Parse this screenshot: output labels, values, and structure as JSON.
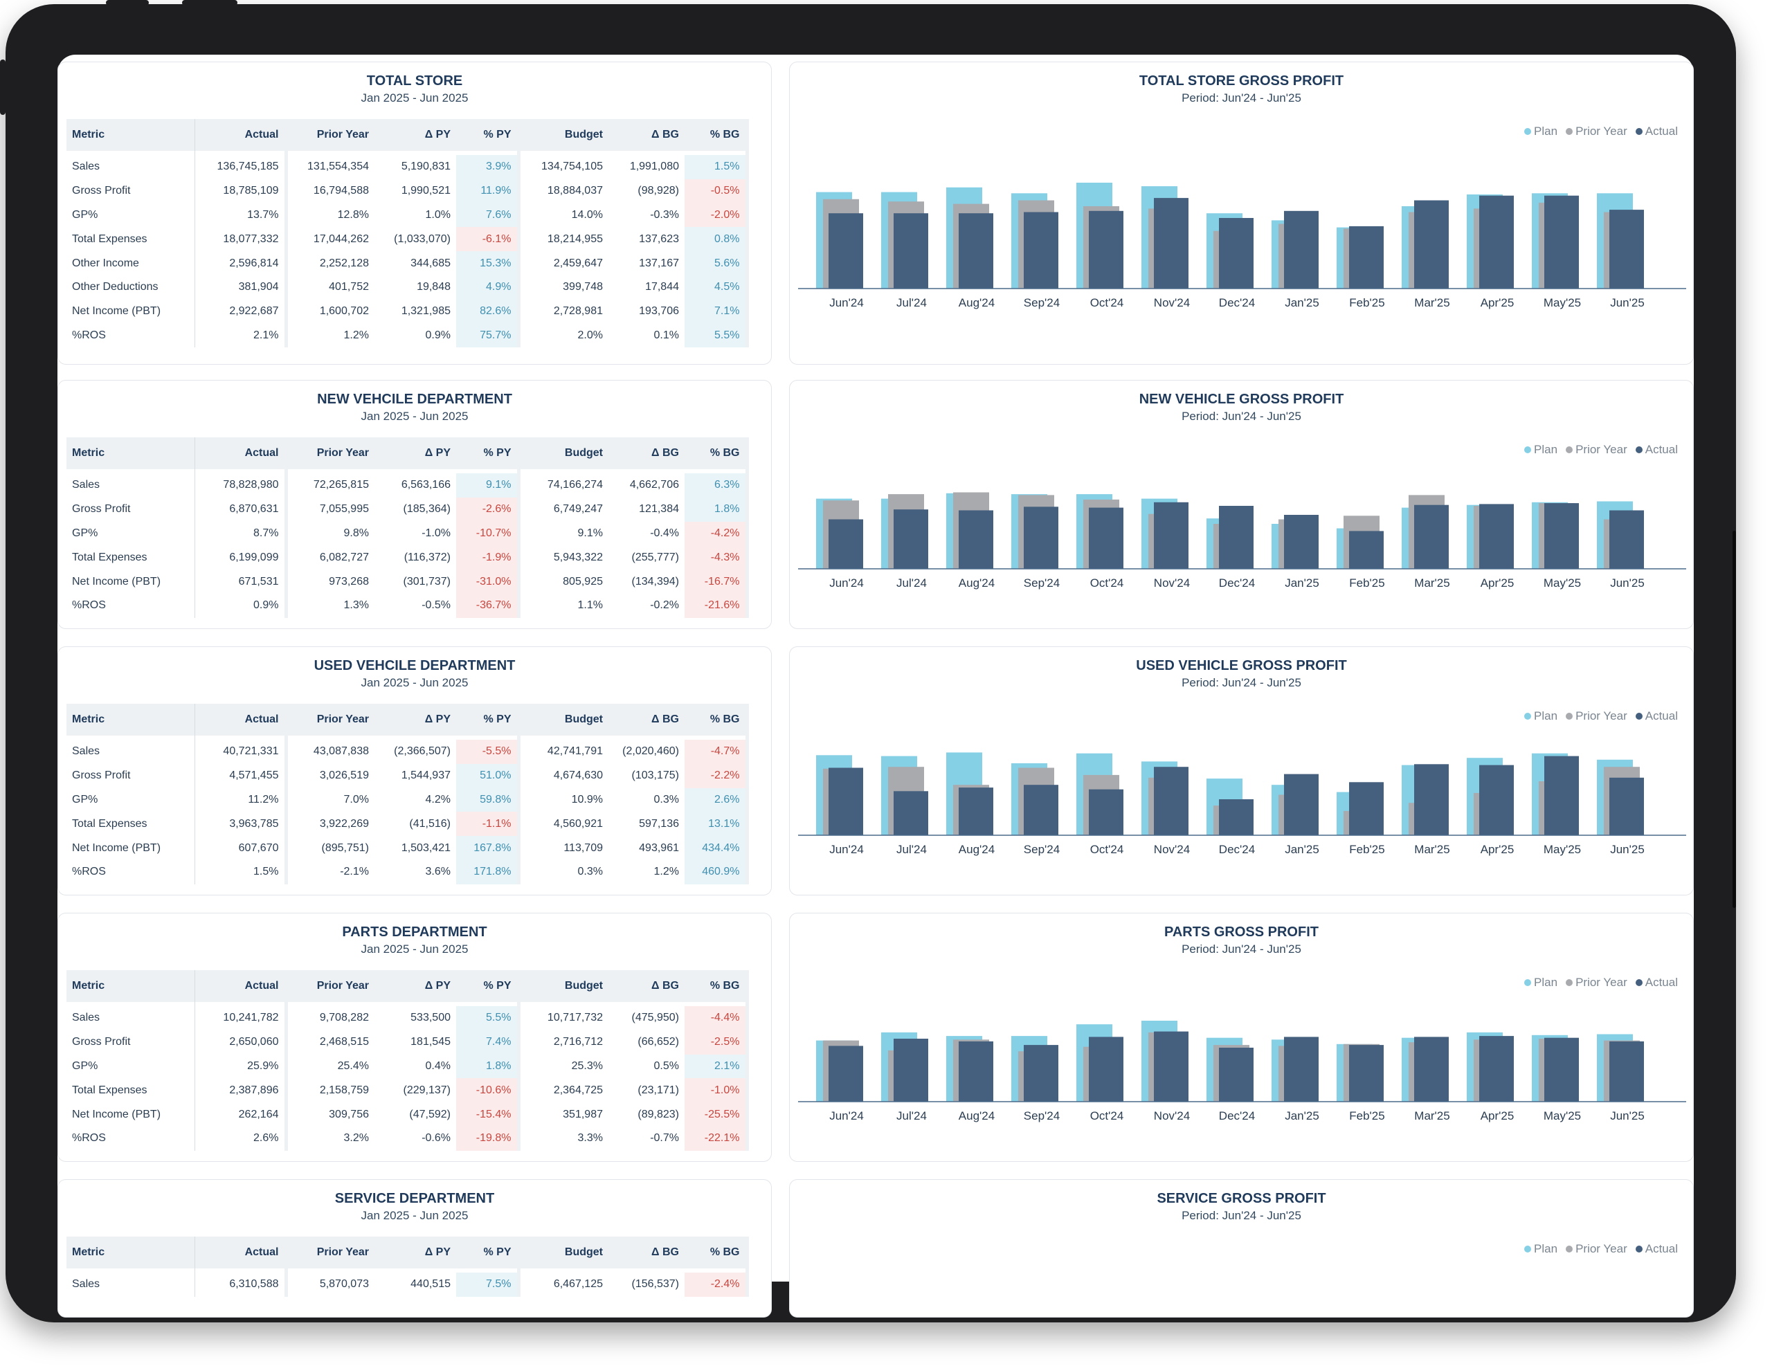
{
  "legend": {
    "plan": "Plan",
    "prior_year": "Prior Year",
    "actual": "Actual"
  },
  "colors": {
    "plan": "#86d0e6",
    "prior_year": "#a8aaae",
    "actual": "#455f7e",
    "positive": "#3f8fb0",
    "negative": "#c8463f"
  },
  "months": [
    "Jun'24",
    "Jul'24",
    "Aug'24",
    "Sep'24",
    "Oct'24",
    "Nov'24",
    "Dec'24",
    "Jan'25",
    "Feb'25",
    "Mar'25",
    "Apr'25",
    "May'25",
    "Jun'25"
  ],
  "table_headers": [
    "Metric",
    "Actual",
    "Prior Year",
    "Δ PY",
    "% PY",
    "Budget",
    "Δ BG",
    "% BG"
  ],
  "sections": [
    {
      "table_title": "TOTAL STORE",
      "table_period": "Jan 2025 - Jun 2025",
      "chart_title": "TOTAL STORE GROSS PROFIT",
      "chart_period": "Period: Jun'24 - Jun'25",
      "rows": [
        {
          "metric": "Sales",
          "actual": "136,745,185",
          "prior_year": "131,554,354",
          "d_py": "5,190,831",
          "pct_py": "3.9%",
          "py_sign": "pos",
          "budget": "134,754,105",
          "d_bg": "1,991,080",
          "pct_bg": "1.5%",
          "bg_sign": "pos"
        },
        {
          "metric": "Gross Profit",
          "actual": "18,785,109",
          "prior_year": "16,794,588",
          "d_py": "1,990,521",
          "pct_py": "11.9%",
          "py_sign": "pos",
          "budget": "18,884,037",
          "d_bg": "(98,928)",
          "pct_bg": "-0.5%",
          "bg_sign": "neg"
        },
        {
          "metric": "GP%",
          "actual": "13.7%",
          "prior_year": "12.8%",
          "d_py": "1.0%",
          "pct_py": "7.6%",
          "py_sign": "pos",
          "budget": "14.0%",
          "d_bg": "-0.3%",
          "pct_bg": "-2.0%",
          "bg_sign": "neg"
        },
        {
          "metric": "Total Expenses",
          "actual": "18,077,332",
          "prior_year": "17,044,262",
          "d_py": "(1,033,070)",
          "pct_py": "-6.1%",
          "py_sign": "neg",
          "budget": "18,214,955",
          "d_bg": "137,623",
          "pct_bg": "0.8%",
          "bg_sign": "pos"
        },
        {
          "metric": "Other Income",
          "actual": "2,596,814",
          "prior_year": "2,252,128",
          "d_py": "344,685",
          "pct_py": "15.3%",
          "py_sign": "pos",
          "budget": "2,459,647",
          "d_bg": "137,167",
          "pct_bg": "5.6%",
          "bg_sign": "pos"
        },
        {
          "metric": "Other Deductions",
          "actual": "381,904",
          "prior_year": "401,752",
          "d_py": "19,848",
          "pct_py": "4.9%",
          "py_sign": "pos",
          "budget": "399,748",
          "d_bg": "17,844",
          "pct_bg": "4.5%",
          "bg_sign": "pos"
        },
        {
          "metric": "Net Income (PBT)",
          "actual": "2,922,687",
          "prior_year": "1,600,702",
          "d_py": "1,321,985",
          "pct_py": "82.6%",
          "py_sign": "pos",
          "budget": "2,728,981",
          "d_bg": "193,706",
          "pct_bg": "7.1%",
          "bg_sign": "pos"
        },
        {
          "metric": "%ROS",
          "actual": "2.1%",
          "prior_year": "1.2%",
          "d_py": "0.9%",
          "pct_py": "75.7%",
          "py_sign": "pos",
          "budget": "2.0%",
          "d_bg": "0.1%",
          "pct_bg": "5.5%",
          "bg_sign": "pos"
        }
      ]
    },
    {
      "table_title": "NEW VEHCILE DEPARTMENT",
      "table_period": "Jan 2025 - Jun 2025",
      "chart_title": "NEW VEHICLE GROSS PROFIT",
      "chart_period": "Period: Jun'24 - Jun'25",
      "rows": [
        {
          "metric": "Sales",
          "actual": "78,828,980",
          "prior_year": "72,265,815",
          "d_py": "6,563,166",
          "pct_py": "9.1%",
          "py_sign": "pos",
          "budget": "74,166,274",
          "d_bg": "4,662,706",
          "pct_bg": "6.3%",
          "bg_sign": "pos"
        },
        {
          "metric": "Gross Profit",
          "actual": "6,870,631",
          "prior_year": "7,055,995",
          "d_py": "(185,364)",
          "pct_py": "-2.6%",
          "py_sign": "neg",
          "budget": "6,749,247",
          "d_bg": "121,384",
          "pct_bg": "1.8%",
          "bg_sign": "pos"
        },
        {
          "metric": "GP%",
          "actual": "8.7%",
          "prior_year": "9.8%",
          "d_py": "-1.0%",
          "pct_py": "-10.7%",
          "py_sign": "neg",
          "budget": "9.1%",
          "d_bg": "-0.4%",
          "pct_bg": "-4.2%",
          "bg_sign": "neg"
        },
        {
          "metric": "Total Expenses",
          "actual": "6,199,099",
          "prior_year": "6,082,727",
          "d_py": "(116,372)",
          "pct_py": "-1.9%",
          "py_sign": "neg",
          "budget": "5,943,322",
          "d_bg": "(255,777)",
          "pct_bg": "-4.3%",
          "bg_sign": "neg"
        },
        {
          "metric": "Net Income (PBT)",
          "actual": "671,531",
          "prior_year": "973,268",
          "d_py": "(301,737)",
          "pct_py": "-31.0%",
          "py_sign": "neg",
          "budget": "805,925",
          "d_bg": "(134,394)",
          "pct_bg": "-16.7%",
          "bg_sign": "neg"
        },
        {
          "metric": "%ROS",
          "actual": "0.9%",
          "prior_year": "1.3%",
          "d_py": "-0.5%",
          "pct_py": "-36.7%",
          "py_sign": "neg",
          "budget": "1.1%",
          "d_bg": "-0.2%",
          "pct_bg": "-21.6%",
          "bg_sign": "neg"
        }
      ]
    },
    {
      "table_title": "USED VEHCILE DEPARTMENT",
      "table_period": "Jan 2025 - Jun 2025",
      "chart_title": "USED VEHICLE GROSS PROFIT",
      "chart_period": "Period: Jun'24 - Jun'25",
      "rows": [
        {
          "metric": "Sales",
          "actual": "40,721,331",
          "prior_year": "43,087,838",
          "d_py": "(2,366,507)",
          "pct_py": "-5.5%",
          "py_sign": "neg",
          "budget": "42,741,791",
          "d_bg": "(2,020,460)",
          "pct_bg": "-4.7%",
          "bg_sign": "neg"
        },
        {
          "metric": "Gross Profit",
          "actual": "4,571,455",
          "prior_year": "3,026,519",
          "d_py": "1,544,937",
          "pct_py": "51.0%",
          "py_sign": "pos",
          "budget": "4,674,630",
          "d_bg": "(103,175)",
          "pct_bg": "-2.2%",
          "bg_sign": "neg"
        },
        {
          "metric": "GP%",
          "actual": "11.2%",
          "prior_year": "7.0%",
          "d_py": "4.2%",
          "pct_py": "59.8%",
          "py_sign": "pos",
          "budget": "10.9%",
          "d_bg": "0.3%",
          "pct_bg": "2.6%",
          "bg_sign": "pos"
        },
        {
          "metric": "Total Expenses",
          "actual": "3,963,785",
          "prior_year": "3,922,269",
          "d_py": "(41,516)",
          "pct_py": "-1.1%",
          "py_sign": "neg",
          "budget": "4,560,921",
          "d_bg": "597,136",
          "pct_bg": "13.1%",
          "bg_sign": "pos"
        },
        {
          "metric": "Net Income (PBT)",
          "actual": "607,670",
          "prior_year": "(895,751)",
          "d_py": "1,503,421",
          "pct_py": "167.8%",
          "py_sign": "pos",
          "budget": "113,709",
          "d_bg": "493,961",
          "pct_bg": "434.4%",
          "bg_sign": "pos"
        },
        {
          "metric": "%ROS",
          "actual": "1.5%",
          "prior_year": "-2.1%",
          "d_py": "3.6%",
          "pct_py": "171.8%",
          "py_sign": "pos",
          "budget": "0.3%",
          "d_bg": "1.2%",
          "pct_bg": "460.9%",
          "bg_sign": "pos"
        }
      ]
    },
    {
      "table_title": "PARTS DEPARTMENT",
      "table_period": "Jan 2025 - Jun 2025",
      "chart_title": "PARTS GROSS PROFIT",
      "chart_period": "Period: Jun'24 - Jun'25",
      "rows": [
        {
          "metric": "Sales",
          "actual": "10,241,782",
          "prior_year": "9,708,282",
          "d_py": "533,500",
          "pct_py": "5.5%",
          "py_sign": "pos",
          "budget": "10,717,732",
          "d_bg": "(475,950)",
          "pct_bg": "-4.4%",
          "bg_sign": "neg"
        },
        {
          "metric": "Gross Profit",
          "actual": "2,650,060",
          "prior_year": "2,468,515",
          "d_py": "181,545",
          "pct_py": "7.4%",
          "py_sign": "pos",
          "budget": "2,716,712",
          "d_bg": "(66,652)",
          "pct_bg": "-2.5%",
          "bg_sign": "neg"
        },
        {
          "metric": "GP%",
          "actual": "25.9%",
          "prior_year": "25.4%",
          "d_py": "0.4%",
          "pct_py": "1.8%",
          "py_sign": "pos",
          "budget": "25.3%",
          "d_bg": "0.5%",
          "pct_bg": "2.1%",
          "bg_sign": "pos"
        },
        {
          "metric": "Total Expenses",
          "actual": "2,387,896",
          "prior_year": "2,158,759",
          "d_py": "(229,137)",
          "pct_py": "-10.6%",
          "py_sign": "neg",
          "budget": "2,364,725",
          "d_bg": "(23,171)",
          "pct_bg": "-1.0%",
          "bg_sign": "neg"
        },
        {
          "metric": "Net Income (PBT)",
          "actual": "262,164",
          "prior_year": "309,756",
          "d_py": "(47,592)",
          "pct_py": "-15.4%",
          "py_sign": "neg",
          "budget": "351,987",
          "d_bg": "(89,823)",
          "pct_bg": "-25.5%",
          "bg_sign": "neg"
        },
        {
          "metric": "%ROS",
          "actual": "2.6%",
          "prior_year": "3.2%",
          "d_py": "-0.6%",
          "pct_py": "-19.8%",
          "py_sign": "neg",
          "budget": "3.3%",
          "d_bg": "-0.7%",
          "pct_bg": "-22.1%",
          "bg_sign": "neg"
        }
      ]
    },
    {
      "table_title": "SERVICE DEPARTMENT",
      "table_period": "Jan 2025 - Jun 2025",
      "chart_title": "SERVICE GROSS PROFIT",
      "chart_period": "Period: Jun'24 - Jun'25",
      "rows": [
        {
          "metric": "Sales",
          "actual": "6,310,588",
          "prior_year": "5,870,073",
          "d_py": "440,515",
          "pct_py": "7.5%",
          "py_sign": "pos",
          "budget": "6,467,125",
          "d_bg": "(156,537)",
          "pct_bg": "-2.4%",
          "bg_sign": "neg"
        }
      ]
    }
  ],
  "chart_data": [
    {
      "type": "bar",
      "title": "TOTAL STORE GROSS PROFIT",
      "subtitle": "Period: Jun'24 - Jun'25",
      "categories": [
        "Jun'24",
        "Jul'24",
        "Aug'24",
        "Sep'24",
        "Oct'24",
        "Nov'24",
        "Dec'24",
        "Jan'25",
        "Feb'25",
        "Mar'25",
        "Apr'25",
        "May'25",
        "Jun'25"
      ],
      "ylim": [
        0,
        100
      ],
      "series": [
        {
          "name": "Plan",
          "values": [
            82,
            82,
            86,
            81,
            90,
            87,
            64,
            58,
            52,
            70,
            80,
            81,
            81
          ]
        },
        {
          "name": "Prior Year",
          "values": [
            76,
            74,
            72,
            75,
            70,
            68,
            49,
            55,
            51,
            65,
            68,
            73,
            65
          ]
        },
        {
          "name": "Actual",
          "values": [
            64,
            64,
            64,
            65,
            66,
            77,
            60,
            66,
            53,
            75,
            79,
            79,
            67
          ]
        }
      ]
    },
    {
      "type": "bar",
      "title": "NEW VEHICLE GROSS PROFIT",
      "subtitle": "Period: Jun'24 - Jun'25",
      "categories": [
        "Jun'24",
        "Jul'24",
        "Aug'24",
        "Sep'24",
        "Oct'24",
        "Nov'24",
        "Dec'24",
        "Jan'25",
        "Feb'25",
        "Mar'25",
        "Apr'25",
        "May'25",
        "Jun'25"
      ],
      "ylim": [
        0,
        100
      ],
      "series": [
        {
          "name": "Plan",
          "values": [
            78,
            78,
            84,
            83,
            83,
            78,
            56,
            50,
            45,
            68,
            71,
            74,
            75
          ]
        },
        {
          "name": "Prior Year",
          "values": [
            76,
            83,
            85,
            82,
            77,
            61,
            50,
            55,
            59,
            82,
            70,
            73,
            55
          ]
        },
        {
          "name": "Actual",
          "values": [
            55,
            66,
            65,
            69,
            68,
            74,
            70,
            60,
            42,
            71,
            72,
            73,
            65
          ]
        }
      ]
    },
    {
      "type": "bar",
      "title": "USED VEHICLE GROSS PROFIT",
      "subtitle": "Period: Jun'24 - Jun'25",
      "categories": [
        "Jun'24",
        "Jul'24",
        "Aug'24",
        "Sep'24",
        "Oct'24",
        "Nov'24",
        "Dec'24",
        "Jan'25",
        "Feb'25",
        "Mar'25",
        "Apr'25",
        "May'25",
        "Jun'25"
      ],
      "ylim": [
        0,
        100
      ],
      "series": [
        {
          "name": "Plan",
          "values": [
            89,
            88,
            92,
            80,
            91,
            82,
            63,
            56,
            48,
            78,
            86,
            91,
            84
          ]
        },
        {
          "name": "Prior Year",
          "values": [
            74,
            76,
            56,
            75,
            67,
            64,
            33,
            45,
            27,
            36,
            47,
            60,
            76
          ]
        },
        {
          "name": "Actual",
          "values": [
            75,
            49,
            53,
            56,
            51,
            76,
            40,
            68,
            59,
            79,
            78,
            88,
            64
          ]
        }
      ]
    },
    {
      "type": "bar",
      "title": "PARTS GROSS PROFIT",
      "subtitle": "Period: Jun'24 - Jun'25",
      "categories": [
        "Jun'24",
        "Jul'24",
        "Aug'24",
        "Sep'24",
        "Oct'24",
        "Nov'24",
        "Dec'24",
        "Jan'25",
        "Feb'25",
        "Mar'25",
        "Apr'25",
        "May'25",
        "Jun'25"
      ],
      "ylim": [
        0,
        100
      ],
      "series": [
        {
          "name": "Plan",
          "values": [
            68,
            77,
            73,
            73,
            86,
            90,
            71,
            69,
            64,
            71,
            77,
            74,
            75
          ]
        },
        {
          "name": "Prior Year",
          "values": [
            68,
            57,
            69,
            56,
            61,
            77,
            63,
            62,
            64,
            66,
            69,
            70,
            68
          ]
        },
        {
          "name": "Actual",
          "values": [
            62,
            70,
            67,
            63,
            72,
            78,
            60,
            72,
            63,
            72,
            73,
            71,
            67
          ]
        }
      ]
    },
    {
      "type": "bar",
      "title": "SERVICE GROSS PROFIT",
      "subtitle": "Period: Jun'24 - Jun'25",
      "categories": [],
      "series": []
    }
  ]
}
